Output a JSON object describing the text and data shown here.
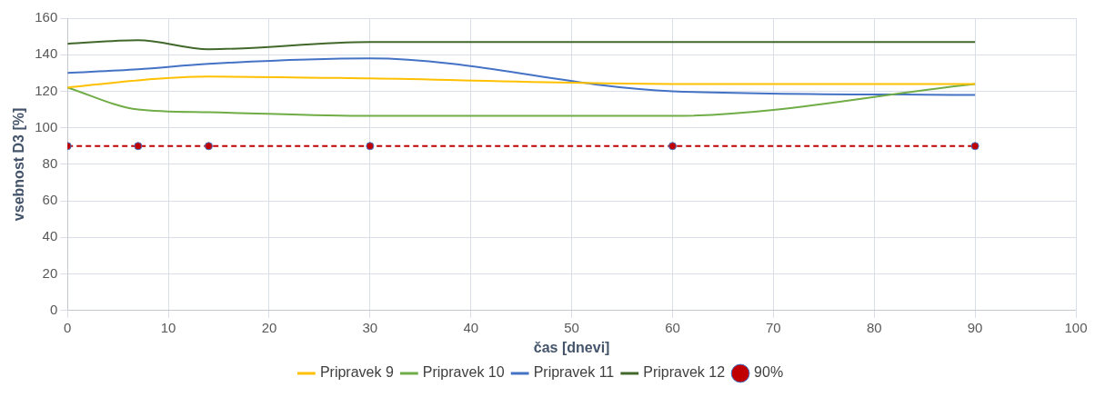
{
  "chart_data": {
    "type": "line",
    "xlabel": "čas [dnevi]",
    "ylabel": "vsebnost D3 [%]",
    "x": [
      0,
      7,
      14,
      30,
      60,
      90
    ],
    "xlim": [
      0,
      100
    ],
    "xticks": [
      0,
      10,
      20,
      30,
      40,
      50,
      60,
      70,
      80,
      90,
      100
    ],
    "ylim": [
      0,
      160
    ],
    "yticks": [
      0,
      20,
      40,
      60,
      80,
      100,
      120,
      140,
      160
    ],
    "grid": true,
    "legend": "bottom",
    "marker": "none",
    "line_style": "solid",
    "series": [
      {
        "name": "Pripravek 9",
        "color": "#ffc000",
        "values": [
          122,
          126,
          128,
          127,
          124,
          124
        ]
      },
      {
        "name": "Pripravek 10",
        "color": "#70ad47",
        "values": [
          122,
          110,
          108.5,
          106.5,
          106.5,
          124
        ]
      },
      {
        "name": "Pripravek 11",
        "color": "#4472c4",
        "values": [
          130,
          132,
          135,
          138,
          120,
          118
        ]
      },
      {
        "name": "Pripravek 12",
        "color": "#43682b",
        "values": [
          146,
          148,
          143,
          147,
          147,
          147
        ]
      },
      {
        "name": "90%",
        "color": "#c00000",
        "values": [
          90,
          90,
          90,
          90,
          90,
          90
        ],
        "marker": "circle",
        "line_style": "dashed"
      }
    ]
  }
}
